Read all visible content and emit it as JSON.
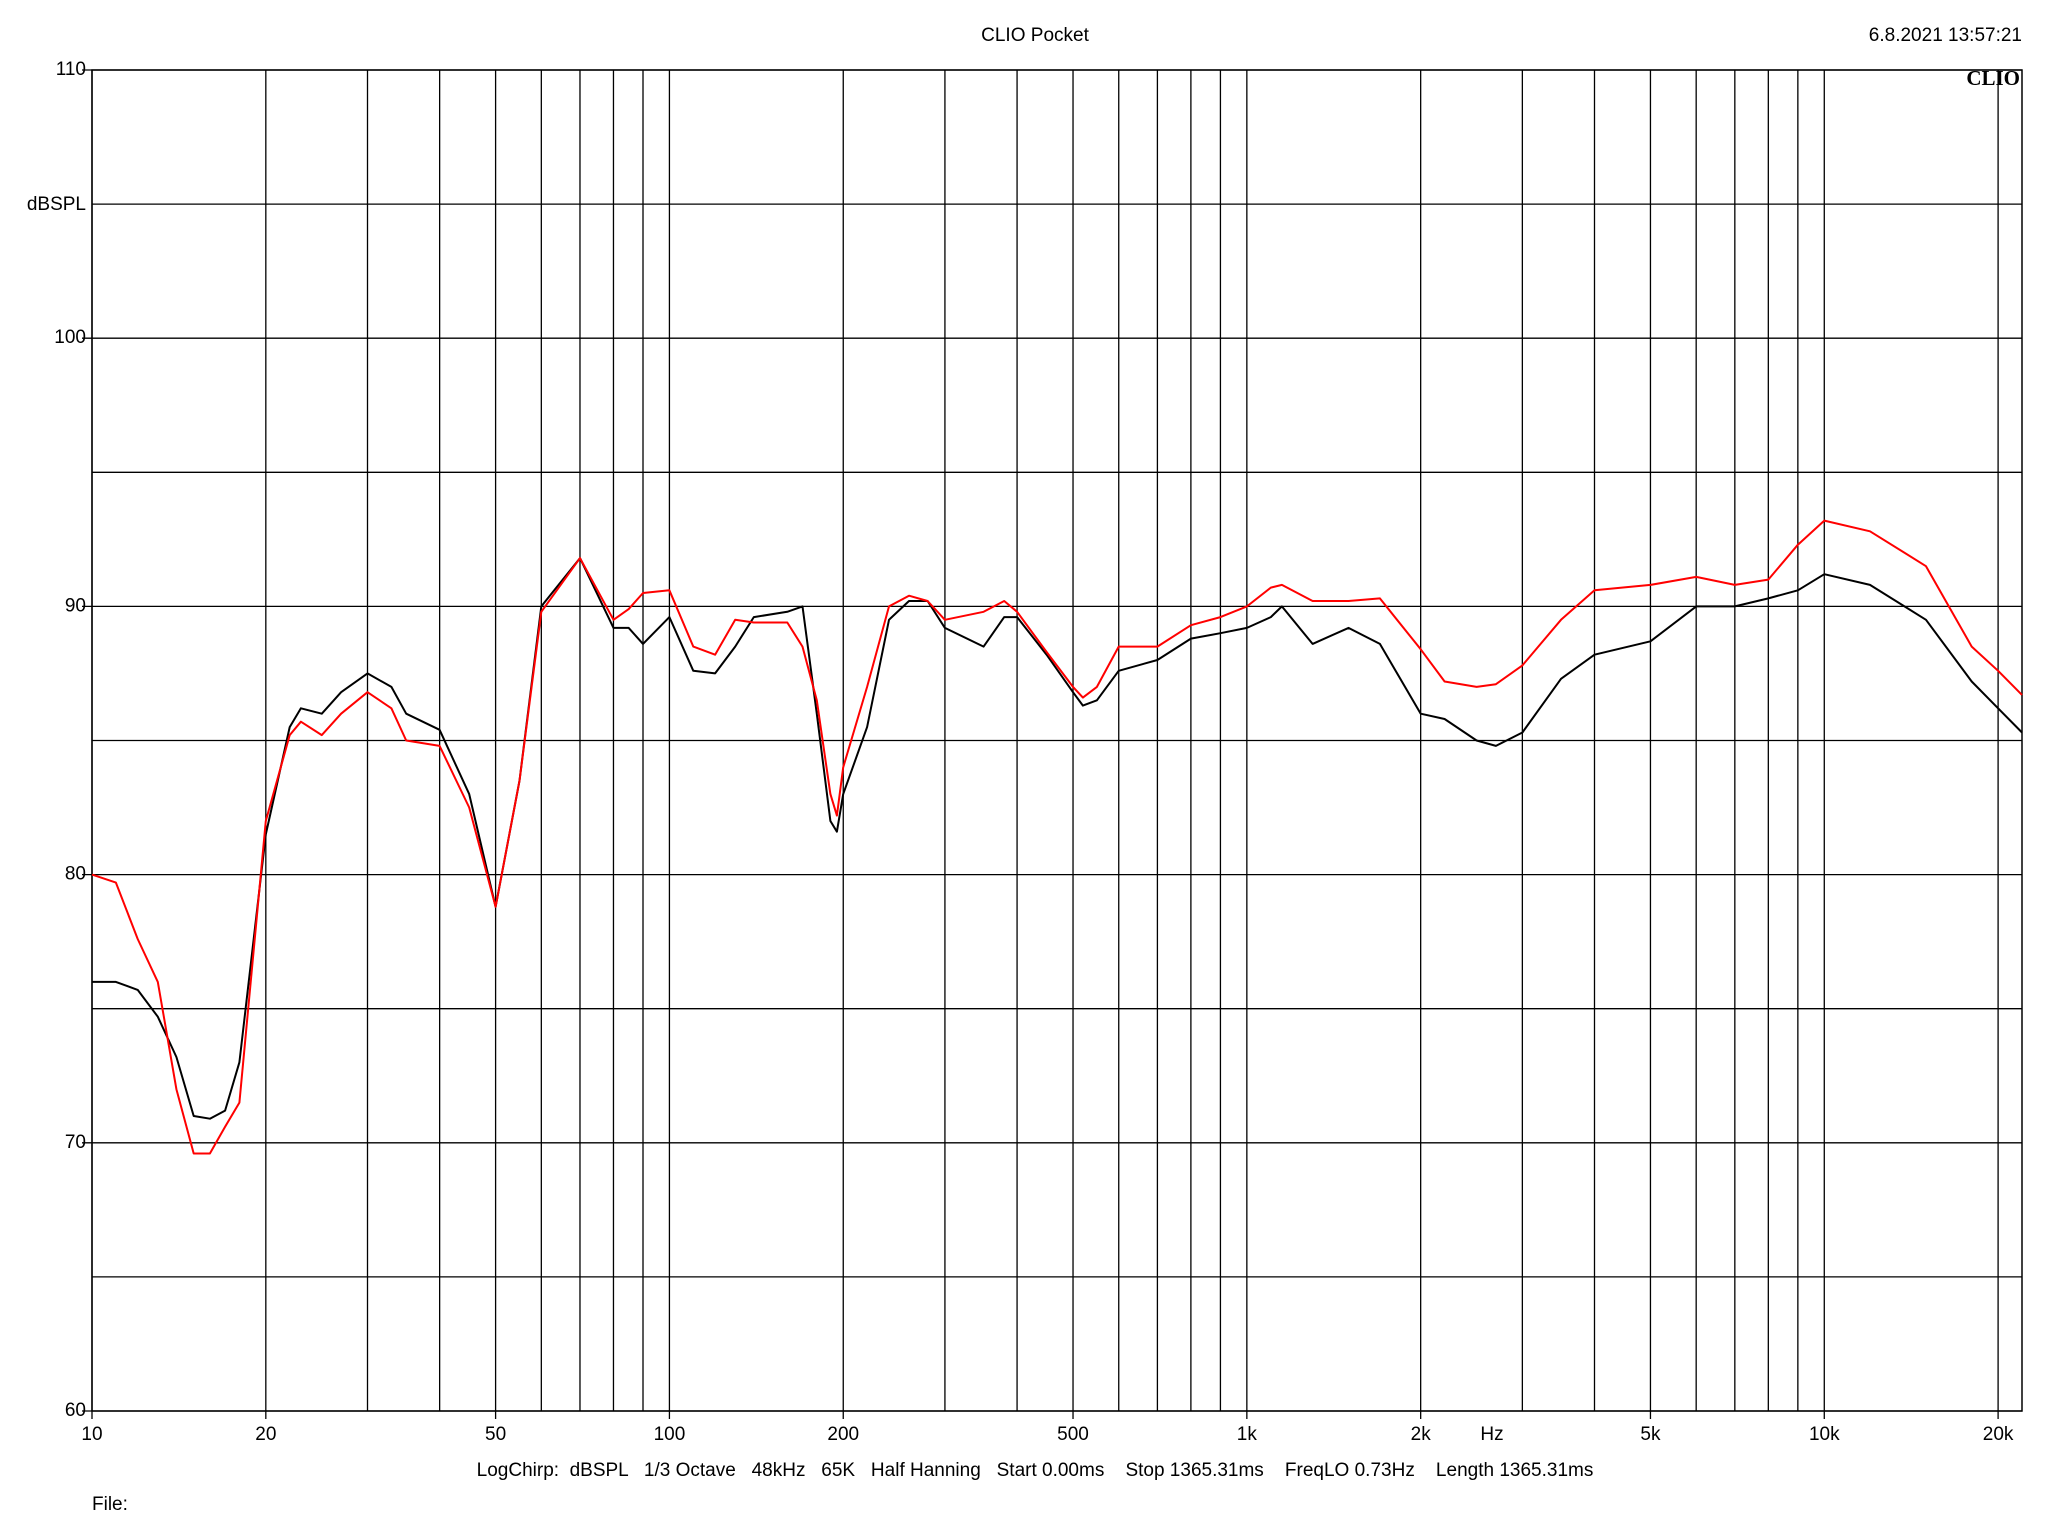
{
  "chart_data": {
    "type": "line",
    "title": "CLIO Pocket",
    "timestamp": "6.8.2021 13:57:21",
    "logo": "CLIO",
    "y_label": "dBSPL",
    "x_label": "Hz",
    "footer": "LogChirp:  dBSPL   1/3 Octave   48kHz   65K   Half Hanning   Start 0.00ms    Stop 1365.31ms    FreqLO 0.73Hz    Length 1365.31ms",
    "file_label": "File:",
    "x_log": true,
    "grid": true,
    "xlim": [
      10,
      22000
    ],
    "ylim": [
      60,
      110
    ],
    "xticks": [
      10,
      20,
      50,
      100,
      200,
      500,
      {
        "value": 1000,
        "label": "1k"
      },
      {
        "value": 2000,
        "label": "2k"
      },
      {
        "value": 5000,
        "label": "5k"
      },
      {
        "value": 10000,
        "label": "10k"
      },
      {
        "value": 20000,
        "label": "20k"
      }
    ],
    "xgrid_minor": [
      30,
      40,
      60,
      70,
      80,
      90,
      300,
      400,
      600,
      700,
      800,
      900,
      3000,
      4000,
      6000,
      7000,
      8000,
      9000
    ],
    "yticks": [
      60,
      70,
      80,
      90,
      100,
      110
    ],
    "ygrid_minor": [
      65,
      75,
      85,
      95,
      105
    ],
    "x": [
      10,
      11,
      12,
      13,
      14,
      15,
      16,
      17,
      18,
      20,
      22,
      23,
      25,
      27,
      30,
      33,
      35,
      40,
      45,
      50,
      55,
      60,
      70,
      80,
      85,
      90,
      100,
      110,
      120,
      130,
      140,
      160,
      170,
      180,
      190,
      195,
      200,
      220,
      240,
      260,
      280,
      300,
      350,
      380,
      400,
      450,
      500,
      520,
      550,
      600,
      700,
      800,
      900,
      1000,
      1100,
      1150,
      1300,
      1500,
      1700,
      2000,
      2200,
      2500,
      2700,
      3000,
      3500,
      4000,
      5000,
      6000,
      7000,
      8000,
      9000,
      10000,
      12000,
      15000,
      18000,
      20000,
      22000
    ],
    "series": [
      {
        "color": "#000000",
        "values": [
          76.0,
          76.0,
          75.7,
          74.7,
          73.2,
          71.0,
          70.9,
          71.2,
          73,
          81.5,
          85.5,
          86.2,
          86.0,
          86.8,
          87.5,
          87,
          86.0,
          85.4,
          83,
          78.8,
          83.5,
          90,
          91.8,
          89.2,
          89.2,
          88.6,
          89.6,
          87.6,
          87.5,
          88.5,
          89.6,
          89.8,
          90,
          86,
          82,
          81.6,
          83,
          85.5,
          89.5,
          90.2,
          90.2,
          89.2,
          88.5,
          89.6,
          89.6,
          88.2,
          86.8,
          86.3,
          86.5,
          87.6,
          88,
          88.8,
          89,
          89.2,
          89.6,
          90,
          88.6,
          89.2,
          88.6,
          86,
          85.8,
          85,
          84.8,
          85.3,
          87.3,
          88.2,
          88.7,
          90,
          90,
          90.3,
          90.6,
          91.2,
          90.8,
          89.5,
          87.2,
          86.2,
          85.3
        ]
      },
      {
        "color": "#ff0000",
        "values": [
          80.0,
          79.7,
          77.6,
          76,
          72,
          69.6,
          69.6,
          70.6,
          71.5,
          82,
          85.2,
          85.7,
          85.2,
          86.0,
          86.8,
          86.2,
          85.0,
          84.8,
          82.5,
          78.8,
          83.5,
          89.8,
          91.8,
          89.5,
          89.9,
          90.5,
          90.6,
          88.5,
          88.2,
          89.5,
          89.4,
          89.4,
          88.5,
          86.5,
          83,
          82.2,
          84,
          87,
          90,
          90.4,
          90.2,
          89.5,
          89.8,
          90.2,
          89.8,
          88.3,
          87,
          86.6,
          87.0,
          88.5,
          88.5,
          89.3,
          89.6,
          90.0,
          90.7,
          90.8,
          90.2,
          90.2,
          90.3,
          88.4,
          87.2,
          87.0,
          87.1,
          87.8,
          89.5,
          90.6,
          90.8,
          91.1,
          90.8,
          91,
          92.3,
          93.2,
          92.8,
          91.5,
          88.5,
          87.6,
          86.7
        ]
      }
    ]
  }
}
